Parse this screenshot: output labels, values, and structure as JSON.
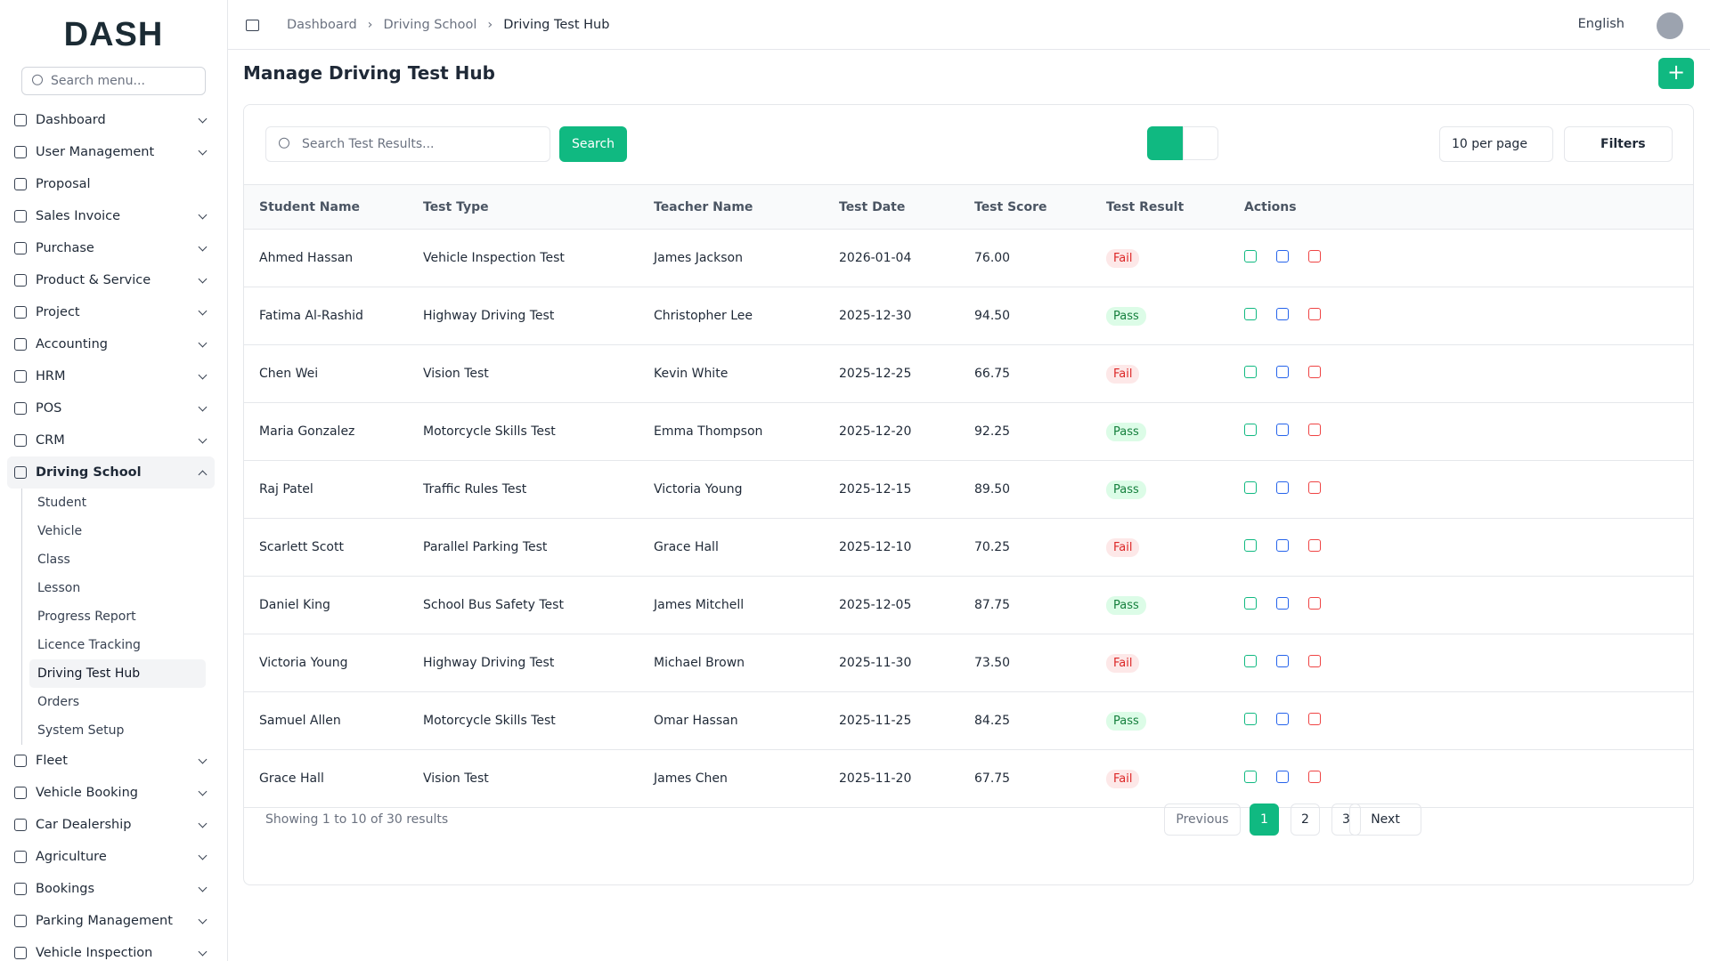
{
  "logo": "DASH",
  "sidebar": {
    "search_placeholder": "Search menu...",
    "items": [
      {
        "label": "Dashboard",
        "submenu": true
      },
      {
        "label": "User Management",
        "submenu": true
      },
      {
        "label": "Proposal",
        "submenu": false
      },
      {
        "label": "Sales Invoice",
        "submenu": true
      },
      {
        "label": "Purchase",
        "submenu": true
      },
      {
        "label": "Product & Service",
        "submenu": true
      },
      {
        "label": "Project",
        "submenu": true
      },
      {
        "label": "Accounting",
        "submenu": true
      },
      {
        "label": "HRM",
        "submenu": true
      },
      {
        "label": "POS",
        "submenu": true
      },
      {
        "label": "CRM",
        "submenu": true
      },
      {
        "label": "Driving School",
        "submenu": true,
        "expanded": true,
        "children": [
          "Student",
          "Vehicle",
          "Class",
          "Lesson",
          "Progress Report",
          "Licence Tracking",
          "Driving Test Hub",
          "Orders",
          "System Setup"
        ],
        "active_child": 6
      },
      {
        "label": "Fleet",
        "submenu": true
      },
      {
        "label": "Vehicle Booking",
        "submenu": true
      },
      {
        "label": "Car Dealership",
        "submenu": true
      },
      {
        "label": "Agriculture",
        "submenu": true
      },
      {
        "label": "Bookings",
        "submenu": true
      },
      {
        "label": "Parking Management",
        "submenu": true
      },
      {
        "label": "Vehicle Inspection",
        "submenu": true
      }
    ]
  },
  "header": {
    "breadcrumb": [
      "Dashboard",
      "Driving School",
      "Driving Test Hub"
    ],
    "language": "English"
  },
  "page": {
    "title": "Manage Driving Test Hub"
  },
  "toolbar": {
    "search_placeholder": "Search Test Results...",
    "search_button": "Search",
    "per_page": "10 per page",
    "filters": "Filters"
  },
  "table": {
    "columns": [
      "Student Name",
      "Test Type",
      "Teacher Name",
      "Test Date",
      "Test Score",
      "Test Result",
      "Actions"
    ],
    "result_colors": {
      "Fail": {
        "bg": "#fde8e8",
        "fg": "#dc2626"
      },
      "Pass": {
        "bg": "#dcfce7",
        "fg": "#15803d"
      }
    },
    "rows": [
      [
        "Ahmed Hassan",
        "Vehicle Inspection Test",
        "James Jackson",
        "2026-01-04",
        "76.00",
        "Fail"
      ],
      [
        "Fatima Al-Rashid",
        "Highway Driving Test",
        "Christopher Lee",
        "2025-12-30",
        "94.50",
        "Pass"
      ],
      [
        "Chen Wei",
        "Vision Test",
        "Kevin White",
        "2025-12-25",
        "66.75",
        "Fail"
      ],
      [
        "Maria Gonzalez",
        "Motorcycle Skills Test",
        "Emma Thompson",
        "2025-12-20",
        "92.25",
        "Pass"
      ],
      [
        "Raj Patel",
        "Traffic Rules Test",
        "Victoria Young",
        "2025-12-15",
        "89.50",
        "Pass"
      ],
      [
        "Scarlett Scott",
        "Parallel Parking Test",
        "Grace Hall",
        "2025-12-10",
        "70.25",
        "Fail"
      ],
      [
        "Daniel King",
        "School Bus Safety Test",
        "James Mitchell",
        "2025-12-05",
        "87.75",
        "Pass"
      ],
      [
        "Victoria Young",
        "Highway Driving Test",
        "Michael Brown",
        "2025-11-30",
        "73.50",
        "Fail"
      ],
      [
        "Samuel Allen",
        "Motorcycle Skills Test",
        "Omar Hassan",
        "2025-11-25",
        "84.25",
        "Pass"
      ],
      [
        "Grace Hall",
        "Vision Test",
        "James Chen",
        "2025-11-20",
        "67.75",
        "Fail"
      ]
    ]
  },
  "pagination": {
    "summary": "Showing 1 to 10 of 30 results",
    "previous": "Previous",
    "pages": [
      "1",
      "2",
      "3"
    ],
    "current": 0,
    "next": "Next"
  }
}
